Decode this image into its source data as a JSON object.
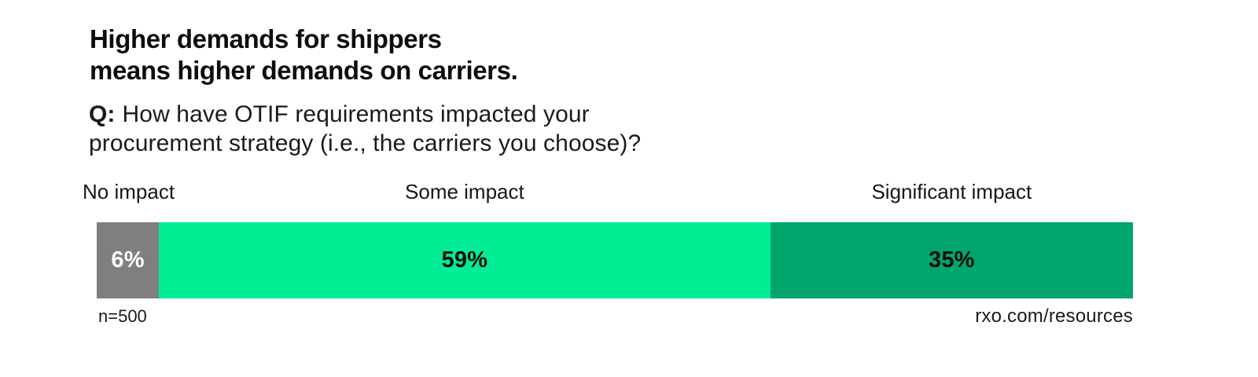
{
  "page": {
    "background": "#ffffff"
  },
  "header": {
    "title_line1": "Higher demands for shippers",
    "title_line2": "means higher demands on carriers.",
    "question_prefix": "Q:",
    "question_line1": "How have OTIF requirements impacted your",
    "question_line2": "procurement strategy (i.e., the carriers you choose)?"
  },
  "chart_data": {
    "type": "bar",
    "subtype": "horizontal-stacked-single-bar",
    "title": "Higher demands for shippers means higher demands on carriers.",
    "question": "Q: How have OTIF requirements impacted your procurement strategy (i.e., the carriers you choose)?",
    "categories": [
      "No impact",
      "Some impact",
      "Significant impact"
    ],
    "values": [
      6,
      59,
      35
    ],
    "value_labels": [
      "6%",
      "59%",
      "35%"
    ],
    "colors": [
      "#7f7f7f",
      "#00ed96",
      "#00a66c"
    ],
    "value_label_colors": [
      "#ffffff",
      "#0b0b0b",
      "#0b0b0b"
    ],
    "unit": "percent",
    "axis_range": [
      0,
      100
    ],
    "grid": false,
    "legend_position": "labels-above-segments",
    "sample_size": "n=500"
  },
  "footer": {
    "sample_size": "n=500",
    "source": "rxo.com/resources"
  }
}
